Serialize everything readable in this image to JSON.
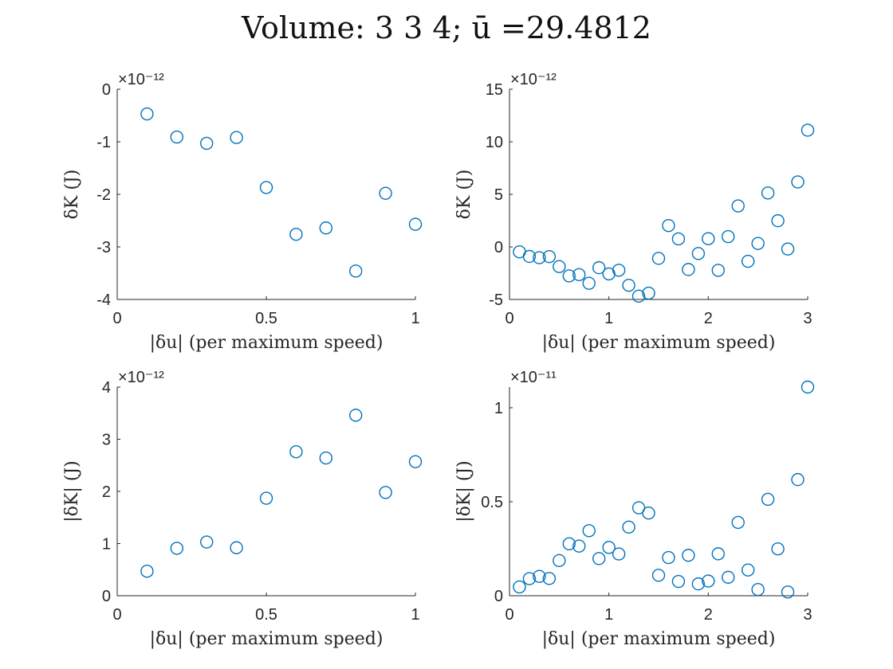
{
  "figure": {
    "title": "Volume: 3 3 4; ū =29.4812"
  },
  "colors": {
    "marker": "#0072BD",
    "axis": "#262626"
  },
  "chart_data": [
    {
      "type": "scatter",
      "id": "top-left",
      "title": "",
      "xlabel": "|δu| (per maximum speed)",
      "ylabel": "δK (J)",
      "exponent_label": "×10⁻¹²",
      "xlim": [
        0,
        1
      ],
      "ylim": [
        -4,
        0
      ],
      "xticks": [
        0,
        0.5,
        1
      ],
      "xtick_labels": [
        "0",
        "0.5",
        "1"
      ],
      "yticks": [
        -4,
        -3,
        -2,
        -1,
        0
      ],
      "ytick_labels": [
        "-4",
        "-3",
        "-2",
        "-1",
        "0"
      ],
      "x": [
        0.1,
        0.2,
        0.3,
        0.4,
        0.5,
        0.6,
        0.7,
        0.8,
        0.9,
        1.0
      ],
      "y": [
        -0.47,
        -0.91,
        -1.03,
        -0.92,
        -1.87,
        -2.76,
        -2.64,
        -3.46,
        -1.98,
        -2.57
      ]
    },
    {
      "type": "scatter",
      "id": "top-right",
      "title": "",
      "xlabel": "|δu| (per maximum speed)",
      "ylabel": "δK (J)",
      "exponent_label": "×10⁻¹²",
      "xlim": [
        0,
        3
      ],
      "ylim": [
        -5,
        15
      ],
      "xticks": [
        0,
        1,
        2,
        3
      ],
      "xtick_labels": [
        "0",
        "1",
        "2",
        "3"
      ],
      "yticks": [
        -5,
        0,
        5,
        10,
        15
      ],
      "ytick_labels": [
        "-5",
        "0",
        "5",
        "10",
        "15"
      ],
      "x": [
        0.1,
        0.2,
        0.3,
        0.4,
        0.5,
        0.6,
        0.7,
        0.8,
        0.9,
        1.0,
        1.1,
        1.2,
        1.3,
        1.4,
        1.5,
        1.6,
        1.7,
        1.8,
        1.9,
        2.0,
        2.1,
        2.2,
        2.3,
        2.4,
        2.5,
        2.6,
        2.7,
        2.8,
        2.9,
        3.0
      ],
      "y": [
        -0.47,
        -0.91,
        -1.03,
        -0.92,
        -1.87,
        -2.76,
        -2.64,
        -3.46,
        -1.98,
        -2.57,
        -2.22,
        -3.65,
        -4.68,
        -4.4,
        -1.09,
        2.03,
        0.76,
        -2.15,
        -0.63,
        0.78,
        -2.23,
        0.98,
        3.9,
        -1.37,
        0.33,
        5.13,
        2.49,
        -0.2,
        6.18,
        11.1
      ]
    },
    {
      "type": "scatter",
      "id": "bottom-left",
      "title": "",
      "xlabel": "|δu| (per maximum speed)",
      "ylabel": "|δK| (J)",
      "exponent_label": "×10⁻¹²",
      "xlim": [
        0,
        1
      ],
      "ylim": [
        0,
        4
      ],
      "xticks": [
        0,
        0.5,
        1
      ],
      "xtick_labels": [
        "0",
        "0.5",
        "1"
      ],
      "yticks": [
        0,
        1,
        2,
        3,
        4
      ],
      "ytick_labels": [
        "0",
        "1",
        "2",
        "3",
        "4"
      ],
      "x": [
        0.1,
        0.2,
        0.3,
        0.4,
        0.5,
        0.6,
        0.7,
        0.8,
        0.9,
        1.0
      ],
      "y": [
        0.47,
        0.91,
        1.03,
        0.92,
        1.87,
        2.76,
        2.64,
        3.46,
        1.98,
        2.57
      ]
    },
    {
      "type": "scatter",
      "id": "bottom-right",
      "title": "",
      "xlabel": "|δu| (per maximum speed)",
      "ylabel": "|δK| (J)",
      "exponent_label": "×10⁻¹¹",
      "xlim": [
        0,
        3
      ],
      "ylim": [
        0,
        1.11
      ],
      "xticks": [
        0,
        1,
        2,
        3
      ],
      "xtick_labels": [
        "0",
        "1",
        "2",
        "3"
      ],
      "yticks": [
        0,
        0.5,
        1
      ],
      "ytick_labels": [
        "0",
        "0.5",
        "1"
      ],
      "x": [
        0.1,
        0.2,
        0.3,
        0.4,
        0.5,
        0.6,
        0.7,
        0.8,
        0.9,
        1.0,
        1.1,
        1.2,
        1.3,
        1.4,
        1.5,
        1.6,
        1.7,
        1.8,
        1.9,
        2.0,
        2.1,
        2.2,
        2.3,
        2.4,
        2.5,
        2.6,
        2.7,
        2.8,
        2.9,
        3.0
      ],
      "y": [
        0.047,
        0.091,
        0.103,
        0.092,
        0.187,
        0.276,
        0.264,
        0.346,
        0.198,
        0.257,
        0.222,
        0.365,
        0.468,
        0.44,
        0.109,
        0.203,
        0.076,
        0.215,
        0.063,
        0.078,
        0.223,
        0.098,
        0.39,
        0.137,
        0.033,
        0.513,
        0.249,
        0.02,
        0.618,
        1.11
      ]
    }
  ]
}
